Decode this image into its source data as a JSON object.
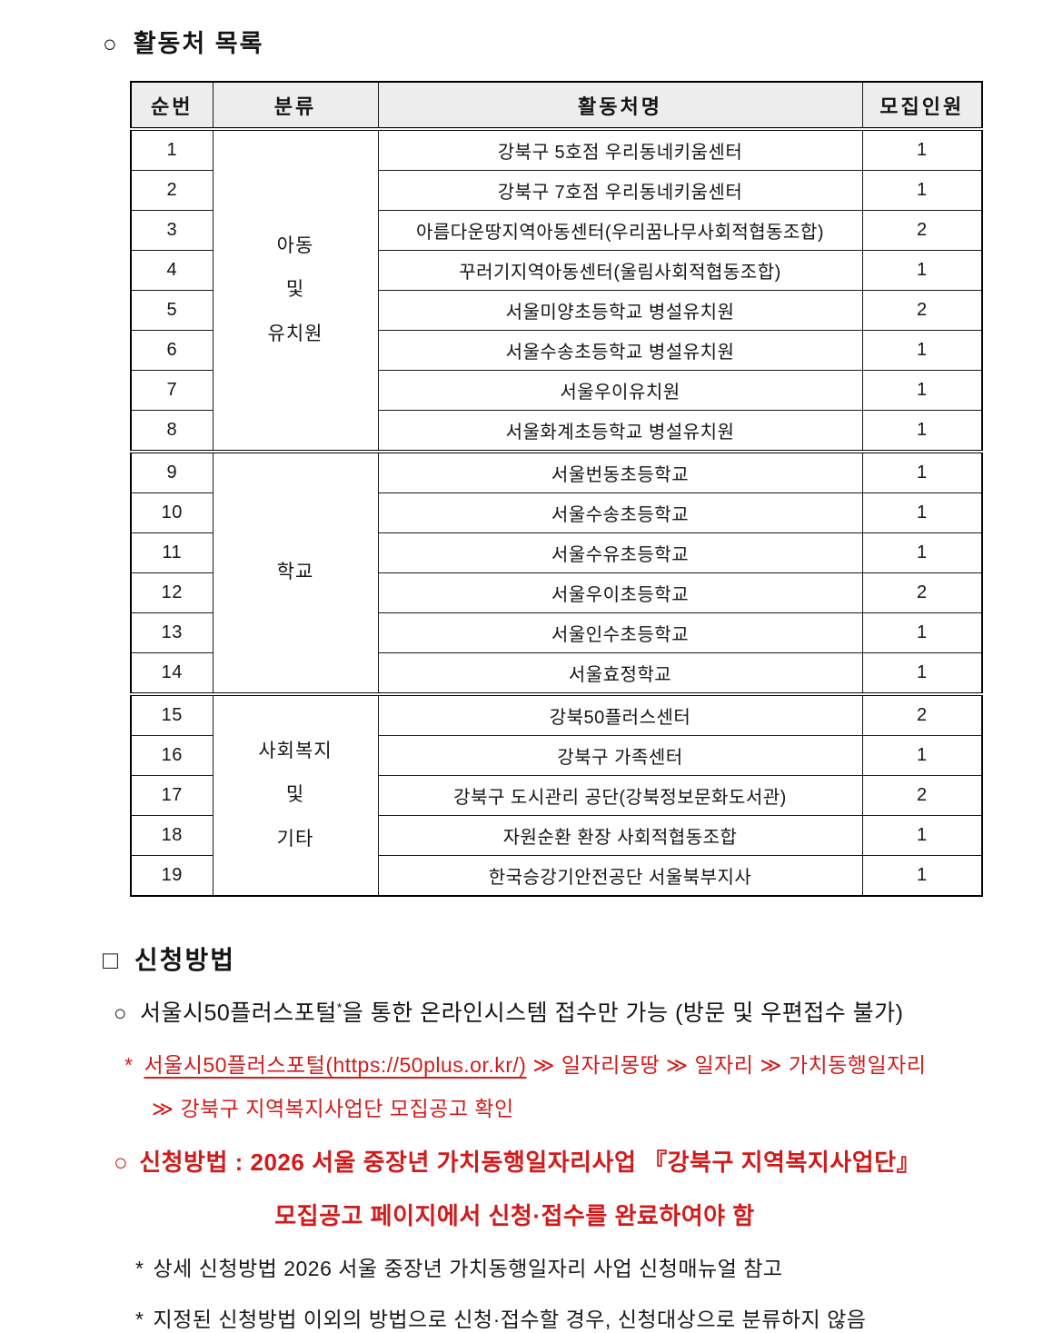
{
  "colors": {
    "accent_red": "#d21a1a",
    "header_bg": "#ededed",
    "border": "#000000"
  },
  "page": {
    "title": {
      "bullet": "○",
      "text": "활동처 목록"
    }
  },
  "table": {
    "headers": [
      "순번",
      "분류",
      "활동처명",
      "모집인원"
    ],
    "groups": [
      {
        "label": "아동\n및\n유치원",
        "span": 8
      },
      {
        "label": "학교",
        "span": 6
      },
      {
        "label": "사회복지\n및\n기타",
        "span": 5
      }
    ],
    "rows": [
      {
        "no": "1",
        "name": "강북구 5호점 우리동네키움센터",
        "count": "1"
      },
      {
        "no": "2",
        "name": "강북구 7호점 우리동네키움센터",
        "count": "1"
      },
      {
        "no": "3",
        "name": "아름다운땅지역아동센터(우리꿈나무사회적협동조합)",
        "count": "2"
      },
      {
        "no": "4",
        "name": "꾸러기지역아동센터(울림사회적협동조합)",
        "count": "1"
      },
      {
        "no": "5",
        "name": "서울미양초등학교 병설유치원",
        "count": "2"
      },
      {
        "no": "6",
        "name": "서울수송초등학교 병설유치원",
        "count": "1"
      },
      {
        "no": "7",
        "name": "서울우이유치원",
        "count": "1"
      },
      {
        "no": "8",
        "name": "서울화계초등학교 병설유치원",
        "count": "1"
      },
      {
        "no": "9",
        "name": "서울번동초등학교",
        "count": "1"
      },
      {
        "no": "10",
        "name": "서울수송초등학교",
        "count": "1"
      },
      {
        "no": "11",
        "name": "서울수유초등학교",
        "count": "1"
      },
      {
        "no": "12",
        "name": "서울우이초등학교",
        "count": "2"
      },
      {
        "no": "13",
        "name": "서울인수초등학교",
        "count": "1"
      },
      {
        "no": "14",
        "name": "서울효정학교",
        "count": "1"
      },
      {
        "no": "15",
        "name": "강북50플러스센터",
        "count": "2"
      },
      {
        "no": "16",
        "name": "강북구 가족센터",
        "count": "1"
      },
      {
        "no": "17",
        "name": "강북구 도시관리 공단(강북정보문화도서관)",
        "count": "2"
      },
      {
        "no": "18",
        "name": "자원순환 환장 사회적협동조합",
        "count": "1"
      },
      {
        "no": "19",
        "name": "한국승강기안전공단 서울북부지사",
        "count": "1"
      }
    ]
  },
  "apply": {
    "heading": {
      "bullet": "□",
      "text": "신청방법"
    },
    "online": {
      "bullet": "○",
      "prefix": "서울시50플러스포털",
      "sup": "*",
      "suffix": "을 통한 온라인시스템 접수만 가능 (방문 및 우편접수 불가)"
    },
    "portal_note": {
      "bullet": "*",
      "underlined": "서울시50플러스포털(https://50plus.or.kr/)",
      "rest": " ≫ 일자리몽땅 ≫ 일자리 ≫ 가치동행일자리",
      "line2": "≫ 강북구 지역복지사업단 모집공고 확인"
    },
    "method": {
      "bullet": "○",
      "line1": "신청방법 : 2026 서울 중장년 가치동행일자리사업 『강북구 지역복지사업단』",
      "line2": "모집공고 페이지에서 신청·접수를 완료하여야 함"
    },
    "notes": [
      {
        "bullet": "*",
        "text": "상세 신청방법 2026 서울 중장년 가치동행일자리 사업 신청매뉴얼 참고"
      },
      {
        "bullet": "*",
        "text": "지정된 신청방법 이외의 방법으로 신청·접수할 경우, 신청대상으로 분류하지 않음"
      }
    ]
  }
}
